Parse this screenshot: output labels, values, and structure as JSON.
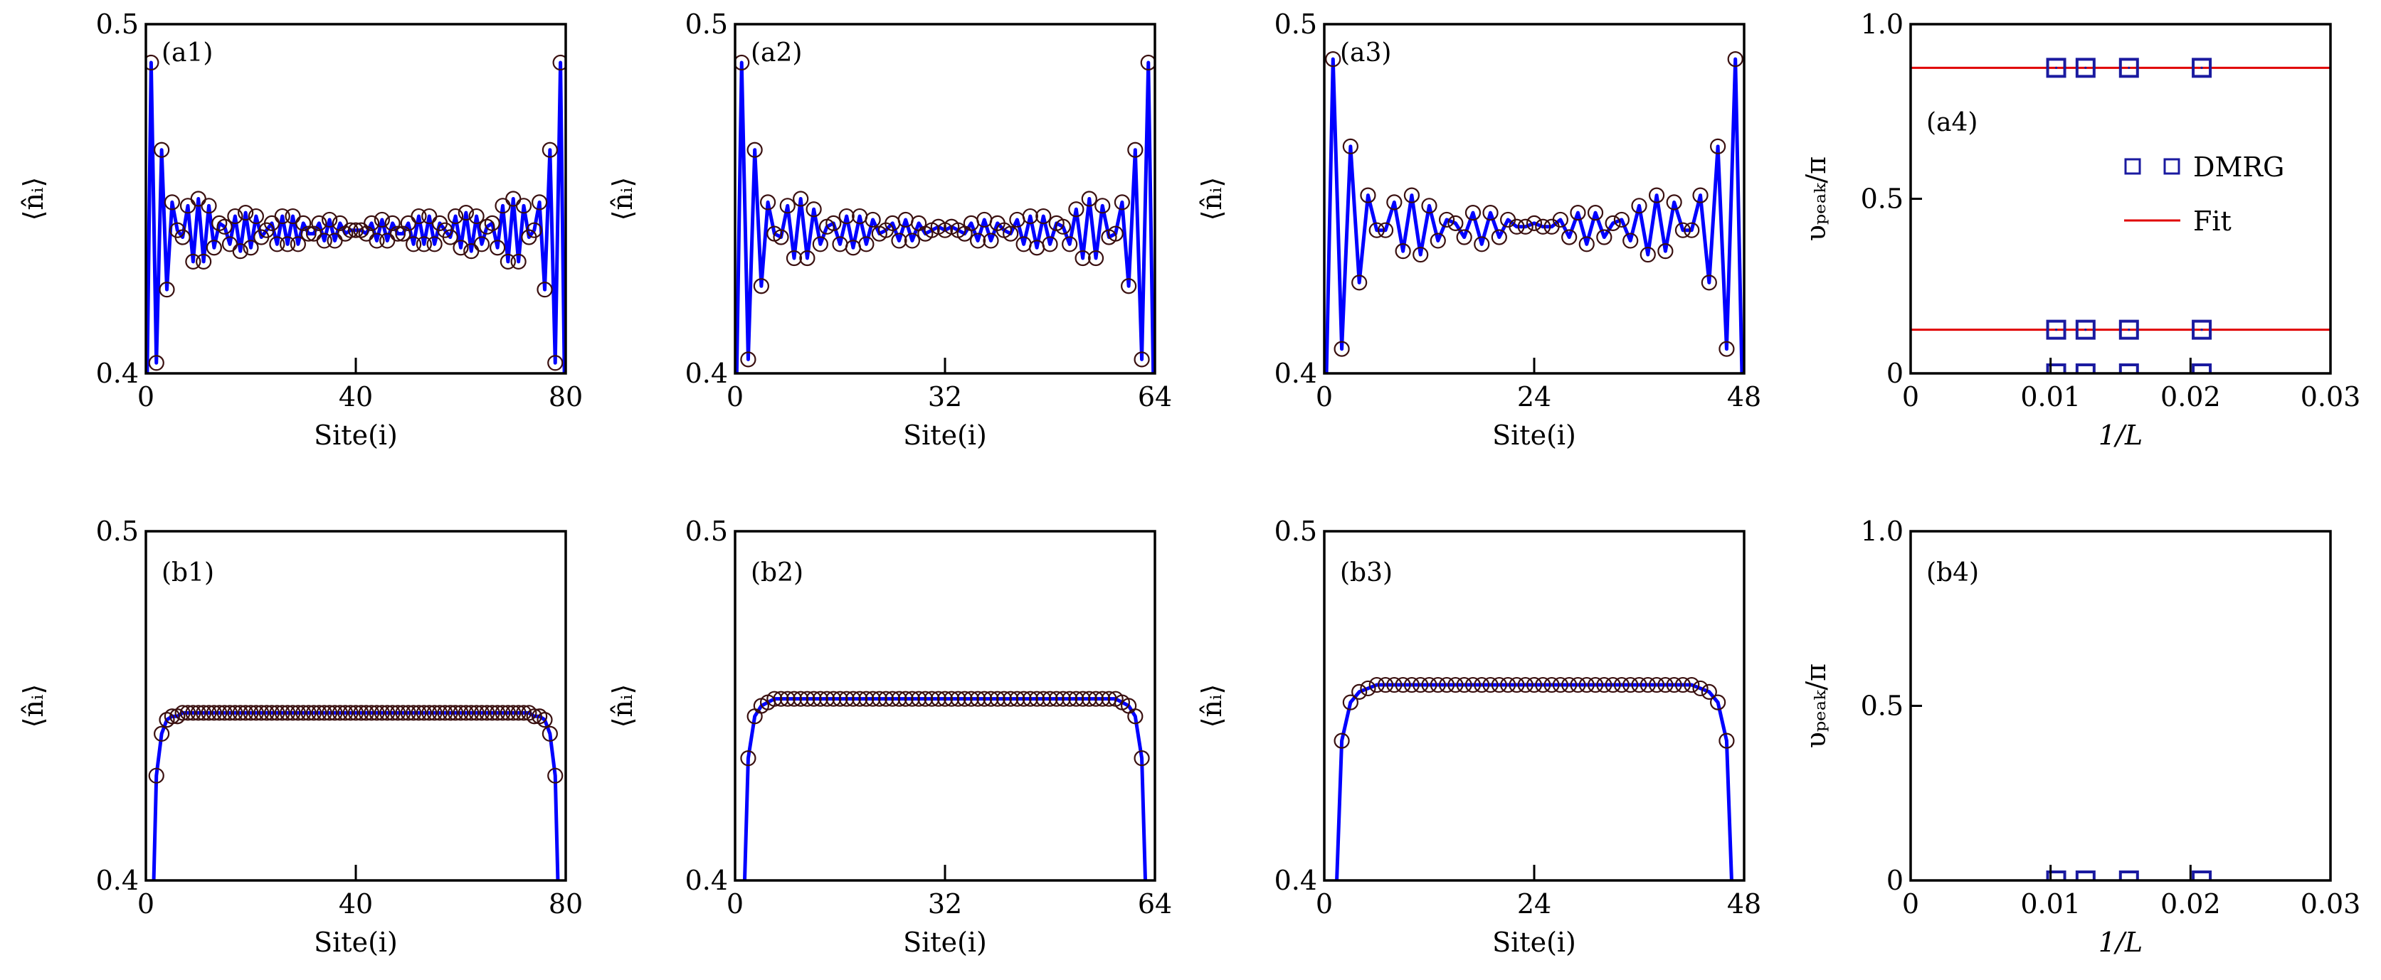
{
  "colors": {
    "line": "#0000ff",
    "marker": "#3a1010",
    "square": "#1a1aa0",
    "fit": "#e00000",
    "frame": "#000000"
  },
  "chart_data": [
    {
      "id": "a1",
      "type": "line",
      "label": "(a1)",
      "xlabel": "Site(i)",
      "ylabel": "⟨n̂ᵢ⟩",
      "xlim": [
        0,
        80
      ],
      "ylim": [
        0.4,
        0.5
      ],
      "xticks": [
        0,
        40,
        80
      ],
      "xtick_labels": [
        "0",
        "40",
        "80"
      ],
      "yticks": [
        0.4,
        0.5
      ],
      "ytick_labels": [
        "0.4",
        "0.5"
      ],
      "x_start": 1,
      "values": [
        0.489,
        0.403,
        0.464,
        0.424,
        0.449,
        0.441,
        0.439,
        0.448,
        0.432,
        0.45,
        0.432,
        0.448,
        0.436,
        0.443,
        0.442,
        0.437,
        0.445,
        0.435,
        0.446,
        0.436,
        0.445,
        0.439,
        0.441,
        0.443,
        0.437,
        0.445,
        0.437,
        0.445,
        0.437,
        0.443,
        0.44,
        0.44,
        0.443,
        0.438,
        0.444,
        0.438,
        0.443,
        0.44,
        0.441,
        0.441,
        0.441,
        0.44,
        0.443,
        0.438,
        0.444,
        0.438,
        0.443,
        0.44,
        0.44,
        0.443,
        0.437,
        0.445,
        0.437,
        0.445,
        0.437,
        0.443,
        0.441,
        0.439,
        0.445,
        0.436,
        0.446,
        0.435,
        0.445,
        0.437,
        0.442,
        0.443,
        0.436,
        0.448,
        0.432,
        0.45,
        0.432,
        0.448,
        0.439,
        0.441,
        0.449,
        0.424,
        0.464,
        0.403,
        0.489
      ],
      "edge_value": 0.37
    },
    {
      "id": "a2",
      "type": "line",
      "label": "(a2)",
      "xlabel": "Site(i)",
      "ylabel": "⟨n̂ᵢ⟩",
      "xlim": [
        0,
        64
      ],
      "ylim": [
        0.4,
        0.5
      ],
      "xticks": [
        0,
        32,
        64
      ],
      "xtick_labels": [
        "0",
        "32",
        "64"
      ],
      "yticks": [
        0.4,
        0.5
      ],
      "ytick_labels": [
        "0.4",
        "0.5"
      ],
      "x_start": 1,
      "values": [
        0.489,
        0.404,
        0.464,
        0.425,
        0.449,
        0.44,
        0.439,
        0.448,
        0.433,
        0.45,
        0.433,
        0.447,
        0.437,
        0.442,
        0.443,
        0.437,
        0.445,
        0.436,
        0.445,
        0.437,
        0.444,
        0.44,
        0.441,
        0.443,
        0.438,
        0.444,
        0.438,
        0.443,
        0.44,
        0.441,
        0.442,
        0.441,
        0.442,
        0.441,
        0.44,
        0.443,
        0.438,
        0.444,
        0.438,
        0.443,
        0.441,
        0.44,
        0.444,
        0.437,
        0.445,
        0.436,
        0.445,
        0.437,
        0.443,
        0.442,
        0.437,
        0.447,
        0.433,
        0.45,
        0.433,
        0.448,
        0.439,
        0.44,
        0.449,
        0.425,
        0.464,
        0.404,
        0.489
      ],
      "edge_value": 0.37
    },
    {
      "id": "a3",
      "type": "line",
      "label": "(a3)",
      "xlabel": "Site(i)",
      "ylabel": "⟨n̂ᵢ⟩",
      "xlim": [
        0,
        48
      ],
      "ylim": [
        0.4,
        0.5
      ],
      "xticks": [
        0,
        24,
        48
      ],
      "xtick_labels": [
        "0",
        "24",
        "48"
      ],
      "yticks": [
        0.4,
        0.5
      ],
      "ytick_labels": [
        "0.4",
        "0.5"
      ],
      "x_start": 1,
      "values": [
        0.49,
        0.407,
        0.465,
        0.426,
        0.451,
        0.441,
        0.441,
        0.449,
        0.435,
        0.451,
        0.434,
        0.448,
        0.438,
        0.444,
        0.443,
        0.439,
        0.446,
        0.437,
        0.446,
        0.439,
        0.444,
        0.442,
        0.442,
        0.443,
        0.442,
        0.442,
        0.444,
        0.439,
        0.446,
        0.437,
        0.446,
        0.439,
        0.443,
        0.444,
        0.438,
        0.448,
        0.434,
        0.451,
        0.435,
        0.449,
        0.441,
        0.441,
        0.451,
        0.426,
        0.465,
        0.407,
        0.49
      ],
      "edge_value": 0.37
    },
    {
      "id": "a4",
      "type": "scatter",
      "label": "(a4)",
      "xlabel": "1/L",
      "ylabel": "υₚₑₐₖ/π",
      "xlim": [
        0,
        0.03
      ],
      "ylim": [
        0,
        1.0
      ],
      "xticks": [
        0,
        0.01,
        0.02,
        0.03
      ],
      "xtick_labels": [
        "0",
        "0.01",
        "0.02",
        "0.03"
      ],
      "yticks": [
        0,
        0.5,
        1.0
      ],
      "ytick_labels": [
        "0",
        "0.5",
        "1.0"
      ],
      "x": [
        0.0104,
        0.0125,
        0.0156,
        0.0208
      ],
      "series": [
        {
          "name": "DMRG",
          "y": [
            0.875,
            0.875,
            0.875,
            0.875
          ]
        },
        {
          "name": "DMRG",
          "y": [
            0.125,
            0.125,
            0.125,
            0.125
          ]
        },
        {
          "name": "DMRG",
          "y": [
            0,
            0,
            0,
            0
          ]
        }
      ],
      "fits": [
        0.875,
        0.125,
        0
      ],
      "legend": {
        "position": "right",
        "entries": [
          "DMRG",
          "Fit"
        ]
      }
    },
    {
      "id": "b1",
      "type": "line",
      "label": "(b1)",
      "xlabel": "Site(i)",
      "ylabel": "⟨n̂ᵢ⟩",
      "xlim": [
        0,
        80
      ],
      "ylim": [
        0.4,
        0.5
      ],
      "xticks": [
        0,
        40,
        80
      ],
      "xtick_labels": [
        "0",
        "40",
        "80"
      ],
      "yticks": [
        0.4,
        0.5
      ],
      "ytick_labels": [
        "0.4",
        "0.5"
      ],
      "x_start": 1,
      "values": [
        0.37,
        0.43,
        0.442,
        0.446,
        0.447,
        0.447,
        0.448,
        0.448,
        0.448,
        0.448,
        0.448,
        0.448,
        0.448,
        0.448,
        0.448,
        0.448,
        0.448,
        0.448,
        0.448,
        0.448,
        0.448,
        0.448,
        0.448,
        0.448,
        0.448,
        0.448,
        0.448,
        0.448,
        0.448,
        0.448,
        0.448,
        0.448,
        0.448,
        0.448,
        0.448,
        0.448,
        0.448,
        0.448,
        0.448,
        0.448,
        0.448,
        0.448,
        0.448,
        0.448,
        0.448,
        0.448,
        0.448,
        0.448,
        0.448,
        0.448,
        0.448,
        0.448,
        0.448,
        0.448,
        0.448,
        0.448,
        0.448,
        0.448,
        0.448,
        0.448,
        0.448,
        0.448,
        0.448,
        0.448,
        0.448,
        0.448,
        0.448,
        0.448,
        0.448,
        0.448,
        0.448,
        0.448,
        0.448,
        0.447,
        0.447,
        0.446,
        0.442,
        0.43,
        0.37
      ]
    },
    {
      "id": "b2",
      "type": "line",
      "label": "(b2)",
      "xlabel": "Site(i)",
      "ylabel": "⟨n̂ᵢ⟩",
      "xlim": [
        0,
        64
      ],
      "ylim": [
        0.4,
        0.5
      ],
      "xticks": [
        0,
        32,
        64
      ],
      "xtick_labels": [
        "0",
        "32",
        "64"
      ],
      "yticks": [
        0.4,
        0.5
      ],
      "ytick_labels": [
        "0.4",
        "0.5"
      ],
      "x_start": 1,
      "values": [
        0.37,
        0.435,
        0.447,
        0.45,
        0.451,
        0.452,
        0.452,
        0.452,
        0.452,
        0.452,
        0.452,
        0.452,
        0.452,
        0.452,
        0.452,
        0.452,
        0.452,
        0.452,
        0.452,
        0.452,
        0.452,
        0.452,
        0.452,
        0.452,
        0.452,
        0.452,
        0.452,
        0.452,
        0.452,
        0.452,
        0.452,
        0.452,
        0.452,
        0.452,
        0.452,
        0.452,
        0.452,
        0.452,
        0.452,
        0.452,
        0.452,
        0.452,
        0.452,
        0.452,
        0.452,
        0.452,
        0.452,
        0.452,
        0.452,
        0.452,
        0.452,
        0.452,
        0.452,
        0.452,
        0.452,
        0.452,
        0.452,
        0.452,
        0.451,
        0.45,
        0.447,
        0.435,
        0.37
      ]
    },
    {
      "id": "b3",
      "type": "line",
      "label": "(b3)",
      "xlabel": "Site(i)",
      "ylabel": "⟨n̂ᵢ⟩",
      "xlim": [
        0,
        48
      ],
      "ylim": [
        0.4,
        0.5
      ],
      "xticks": [
        0,
        24,
        48
      ],
      "xtick_labels": [
        "0",
        "24",
        "48"
      ],
      "yticks": [
        0.4,
        0.5
      ],
      "ytick_labels": [
        "0.4",
        "0.5"
      ],
      "x_start": 1,
      "values": [
        0.37,
        0.44,
        0.451,
        0.454,
        0.455,
        0.456,
        0.456,
        0.456,
        0.456,
        0.456,
        0.456,
        0.456,
        0.456,
        0.456,
        0.456,
        0.456,
        0.456,
        0.456,
        0.456,
        0.456,
        0.456,
        0.456,
        0.456,
        0.456,
        0.456,
        0.456,
        0.456,
        0.456,
        0.456,
        0.456,
        0.456,
        0.456,
        0.456,
        0.456,
        0.456,
        0.456,
        0.456,
        0.456,
        0.456,
        0.456,
        0.456,
        0.456,
        0.455,
        0.454,
        0.451,
        0.44,
        0.37
      ]
    },
    {
      "id": "b4",
      "type": "scatter",
      "label": "(b4)",
      "xlabel": "1/L",
      "ylabel": "υₚₑₐₖ/π",
      "xlim": [
        0,
        0.03
      ],
      "ylim": [
        0,
        1.0
      ],
      "xticks": [
        0,
        0.01,
        0.02,
        0.03
      ],
      "xtick_labels": [
        "0",
        "0.01",
        "0.02",
        "0.03"
      ],
      "yticks": [
        0,
        0.5,
        1.0
      ],
      "ytick_labels": [
        "0",
        "0.5",
        "1.0"
      ],
      "x": [
        0.0104,
        0.0125,
        0.0156,
        0.0208
      ],
      "series": [
        {
          "name": "DMRG",
          "y": [
            0,
            0,
            0,
            0
          ]
        }
      ],
      "fits": [
        0
      ]
    }
  ]
}
